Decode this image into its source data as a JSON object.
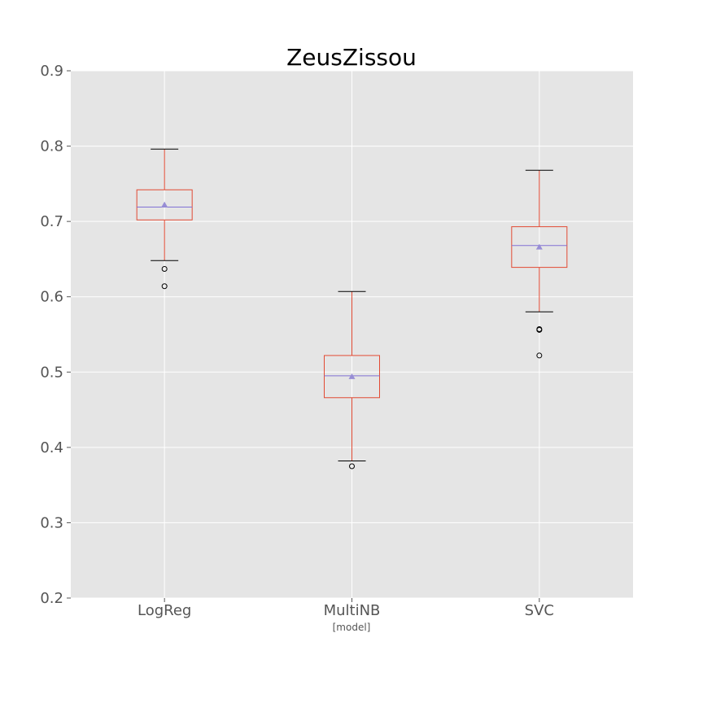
{
  "chart_data": {
    "type": "box",
    "title": "ZeusZissou",
    "xlabel": "[model]",
    "ylabel": "",
    "ylim": [
      0.2,
      0.9
    ],
    "yticks": [
      0.2,
      0.3,
      0.4,
      0.5,
      0.6,
      0.7,
      0.8,
      0.9
    ],
    "ytick_labels": [
      "0.2",
      "0.3",
      "0.4",
      "0.5",
      "0.6",
      "0.7",
      "0.8",
      "0.9"
    ],
    "categories": [
      "LogReg",
      "MultiNB",
      "SVC"
    ],
    "grid": true,
    "boxes": [
      {
        "category": "LogReg",
        "whisker_low": 0.648,
        "q1": 0.702,
        "median": 0.719,
        "mean": 0.722,
        "q3": 0.742,
        "whisker_high": 0.796,
        "outliers": [
          0.637,
          0.614
        ]
      },
      {
        "category": "MultiNB",
        "whisker_low": 0.382,
        "q1": 0.466,
        "median": 0.495,
        "mean": 0.494,
        "q3": 0.522,
        "whisker_high": 0.607,
        "outliers": [
          0.375
        ]
      },
      {
        "category": "SVC",
        "whisker_low": 0.58,
        "q1": 0.639,
        "median": 0.668,
        "mean": 0.666,
        "q3": 0.693,
        "whisker_high": 0.768,
        "outliers": [
          0.557,
          0.556,
          0.522
        ]
      }
    ],
    "colors": {
      "background": "#e5e5e5",
      "grid": "#ffffff",
      "box": "#e24a33",
      "median": "#8172d4",
      "mean": "#988ed5",
      "whisker_cap": "#000000",
      "outlier": "#000000"
    }
  }
}
